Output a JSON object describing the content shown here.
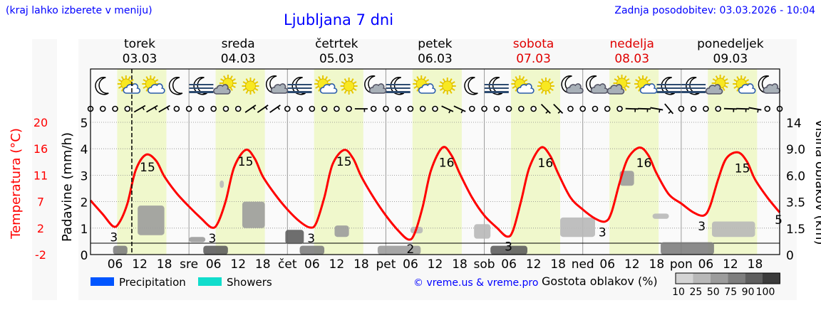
{
  "header": {
    "hint": "(kraj lahko izberete v meniju)",
    "title": "Ljubljana 7 dni",
    "updated": "Zadnja posodobitev: 03.03.2026 - 10:04"
  },
  "days": [
    {
      "name": "torek",
      "date": "03.03",
      "weekend": false
    },
    {
      "name": "sreda",
      "date": "04.03",
      "weekend": false
    },
    {
      "name": "četrtek",
      "date": "05.03",
      "weekend": false
    },
    {
      "name": "petek",
      "date": "06.03",
      "weekend": false
    },
    {
      "name": "sobota",
      "date": "07.03",
      "weekend": true
    },
    {
      "name": "nedelja",
      "date": "08.03",
      "weekend": true
    },
    {
      "name": "ponedeljek",
      "date": "09.03",
      "weekend": false
    }
  ],
  "chart_data": {
    "type": "line",
    "current_time_hour": 10.07,
    "daylight_hours": [
      6.5,
      18.5
    ],
    "x_axis": {
      "hour_ticks": [
        "06",
        "12",
        "18"
      ],
      "day_abbr": [
        "sre",
        "čet",
        "pet",
        "sob",
        "ned",
        "pon"
      ]
    },
    "temperature": {
      "ylabel": "Temperatura (°C)",
      "ticks": [
        "20",
        "16",
        "11",
        "7",
        "2",
        "-2"
      ],
      "ylim": [
        -2,
        20
      ],
      "color": "#ff0000",
      "points": [
        [
          0,
          7
        ],
        [
          3,
          4.7
        ],
        [
          5.5,
          2.7
        ],
        [
          7,
          3.3
        ],
        [
          9,
          6.5
        ],
        [
          11,
          12
        ],
        [
          13.5,
          14.6
        ],
        [
          16,
          13.6
        ],
        [
          18,
          11
        ],
        [
          21,
          8.2
        ],
        [
          24,
          6
        ],
        [
          27,
          4
        ],
        [
          29.5,
          2.5
        ],
        [
          31,
          3.2
        ],
        [
          33,
          7
        ],
        [
          35,
          12.5
        ],
        [
          37.8,
          15.4
        ],
        [
          40,
          14
        ],
        [
          42,
          11
        ],
        [
          45,
          8
        ],
        [
          48,
          5.5
        ],
        [
          51,
          3.5
        ],
        [
          53.5,
          2.5
        ],
        [
          55,
          3.2
        ],
        [
          57,
          7.5
        ],
        [
          59,
          13
        ],
        [
          61.8,
          15.4
        ],
        [
          64,
          14
        ],
        [
          66,
          11
        ],
        [
          69,
          7.5
        ],
        [
          72,
          4.5
        ],
        [
          75,
          2
        ],
        [
          77.5,
          0.5
        ],
        [
          79,
          1.5
        ],
        [
          81,
          6
        ],
        [
          83,
          12
        ],
        [
          85.8,
          15.8
        ],
        [
          88,
          14.5
        ],
        [
          90,
          11.5
        ],
        [
          93,
          7.5
        ],
        [
          96,
          4.5
        ],
        [
          99,
          2.5
        ],
        [
          101.5,
          1.0
        ],
        [
          103,
          2
        ],
        [
          105,
          7
        ],
        [
          107,
          12.5
        ],
        [
          109.8,
          15.8
        ],
        [
          112,
          14.5
        ],
        [
          114,
          11.5
        ],
        [
          117,
          7.5
        ],
        [
          120,
          5.5
        ],
        [
          123,
          4
        ],
        [
          125.5,
          3.5
        ],
        [
          127,
          5
        ],
        [
          129,
          10
        ],
        [
          131,
          14
        ],
        [
          133.8,
          15.8
        ],
        [
          136,
          14.5
        ],
        [
          138,
          11.5
        ],
        [
          141,
          8
        ],
        [
          144,
          6.5
        ],
        [
          147,
          5
        ],
        [
          149.5,
          4.5
        ],
        [
          151,
          6
        ],
        [
          153,
          10.5
        ],
        [
          155,
          14
        ],
        [
          157.8,
          15
        ],
        [
          160,
          13.5
        ],
        [
          162,
          10.5
        ],
        [
          165,
          7.5
        ],
        [
          168,
          5
        ]
      ],
      "labels": [
        {
          "h": 5.7,
          "text": "3"
        },
        {
          "h": 13.9,
          "text": "15"
        },
        {
          "h": 29.7,
          "text": "3"
        },
        {
          "h": 37.8,
          "text": "15"
        },
        {
          "h": 53.8,
          "text": "3"
        },
        {
          "h": 61.8,
          "text": "15"
        },
        {
          "h": 78,
          "text": "2"
        },
        {
          "h": 86.8,
          "text": "16"
        },
        {
          "h": 101.9,
          "text": "3"
        },
        {
          "h": 110.9,
          "text": "16"
        },
        {
          "h": 124.8,
          "text": "3"
        },
        {
          "h": 134.9,
          "text": "16"
        },
        {
          "h": 149,
          "text": "3"
        },
        {
          "h": 158.9,
          "text": "15"
        },
        {
          "h": 168,
          "text": "5"
        }
      ]
    },
    "precipitation": {
      "ylabel": "Padavine (mm/h)",
      "ticks": [
        "5",
        "4",
        "3",
        "2",
        "1",
        "0"
      ],
      "ylim": [
        0,
        5
      ],
      "values": []
    },
    "clouds": {
      "ylabel": "Višina oblakov (km)",
      "ticks": [
        "14",
        "9.0",
        "6.0",
        "3.5",
        "1.5",
        "0"
      ],
      "patches": [
        {
          "h0": 11.5,
          "h1": 18,
          "km0": 1.1,
          "km1": 3.2,
          "density": 50
        },
        {
          "h0": 5.5,
          "h1": 9,
          "km0": 0,
          "km1": 0.5,
          "density": 75
        },
        {
          "h0": 24,
          "h1": 28,
          "km0": 0.7,
          "km1": 1.0,
          "density": 50
        },
        {
          "h0": 27.5,
          "h1": 33.5,
          "km0": 0,
          "km1": 0.5,
          "density": 90
        },
        {
          "h0": 37,
          "h1": 42.5,
          "km0": 1.5,
          "km1": 3.5,
          "density": 50
        },
        {
          "h0": 31.5,
          "h1": 32.5,
          "km0": 4.8,
          "km1": 5.5,
          "density": 25
        },
        {
          "h0": 47.5,
          "h1": 52,
          "km0": 0.6,
          "km1": 1.4,
          "density": 90
        },
        {
          "h0": 51,
          "h1": 57,
          "km0": 0,
          "km1": 0.5,
          "density": 75
        },
        {
          "h0": 59.5,
          "h1": 63,
          "km0": 1.0,
          "km1": 1.7,
          "density": 50
        },
        {
          "h0": 70,
          "h1": 80.5,
          "km0": 0,
          "km1": 0.5,
          "density": 50
        },
        {
          "h0": 78,
          "h1": 81,
          "km0": 1.2,
          "km1": 1.6,
          "density": 25
        },
        {
          "h0": 93.5,
          "h1": 97.5,
          "km0": 0.9,
          "km1": 1.8,
          "density": 25
        },
        {
          "h0": 97.5,
          "h1": 106.5,
          "km0": 0,
          "km1": 0.5,
          "density": 90
        },
        {
          "h0": 114.5,
          "h1": 123,
          "km0": 1.0,
          "km1": 2.3,
          "density": 25
        },
        {
          "h0": 129,
          "h1": 132.5,
          "km0": 5.0,
          "km1": 6.5,
          "density": 50
        },
        {
          "h0": 137,
          "h1": 141,
          "km0": 2.2,
          "km1": 2.6,
          "density": 25
        },
        {
          "h0": 139,
          "h1": 152,
          "km0": 0,
          "km1": 0.7,
          "density": 75
        },
        {
          "h0": 151.5,
          "h1": 162,
          "km0": 1.0,
          "km1": 2.0,
          "density": 25
        }
      ]
    },
    "icons": [
      "moon",
      "sun-cloud",
      "sun-cloud",
      "moon",
      "fog-moon",
      "sun-grey-cloud",
      "sun",
      "moon-cloud",
      "fog-moon",
      "sun-cloud",
      "sun",
      "moon-cloud",
      "fog-moon",
      "sun-cloud",
      "sun",
      "moon",
      "fog-moon",
      "sun-cloud",
      "sun",
      "moon-cloud",
      "moon-cloud",
      "sun-grey-cloud",
      "sun-cloud",
      "fog-moon",
      "fog-moon",
      "sun-grey-cloud",
      "sun-cloud",
      "moon-cloud"
    ],
    "wind": [
      "calm",
      "calm",
      "calm",
      "calm",
      60,
      60,
      60,
      "calm",
      "calm",
      "calm",
      "calm",
      "calm",
      "calm",
      55,
      55,
      55,
      "calm",
      "calm",
      "calm",
      "calm",
      "calm",
      "calm",
      90,
      "calm",
      "calm",
      "calm",
      "calm",
      "calm",
      "calm",
      115,
      115,
      "calm",
      "calm",
      "calm",
      "calm",
      "calm",
      "calm",
      135,
      135,
      "calm",
      "calm",
      "calm",
      "calm",
      "calm",
      92,
      92,
      100,
      140,
      "calm",
      "calm",
      "calm",
      "calm",
      92,
      92,
      100,
      "calm",
      "calm"
    ]
  },
  "legend": {
    "precipitation": {
      "label": "Precipitation",
      "color": "#0055ff"
    },
    "showers": {
      "label": "Showers",
      "color": "#11ddcc"
    },
    "copyright": "© vreme.us & vreme.pro",
    "cloud_density_title": "Gostota oblakov (%)",
    "cloud_density_levels": [
      "10",
      "25",
      "50",
      "75",
      "90",
      "100"
    ],
    "cloud_density_colors": [
      "#d4d4d4",
      "#b8b8b8",
      "#9c9c9c",
      "#7e7e7e",
      "#5e5e5e",
      "#3c3c3c"
    ]
  }
}
